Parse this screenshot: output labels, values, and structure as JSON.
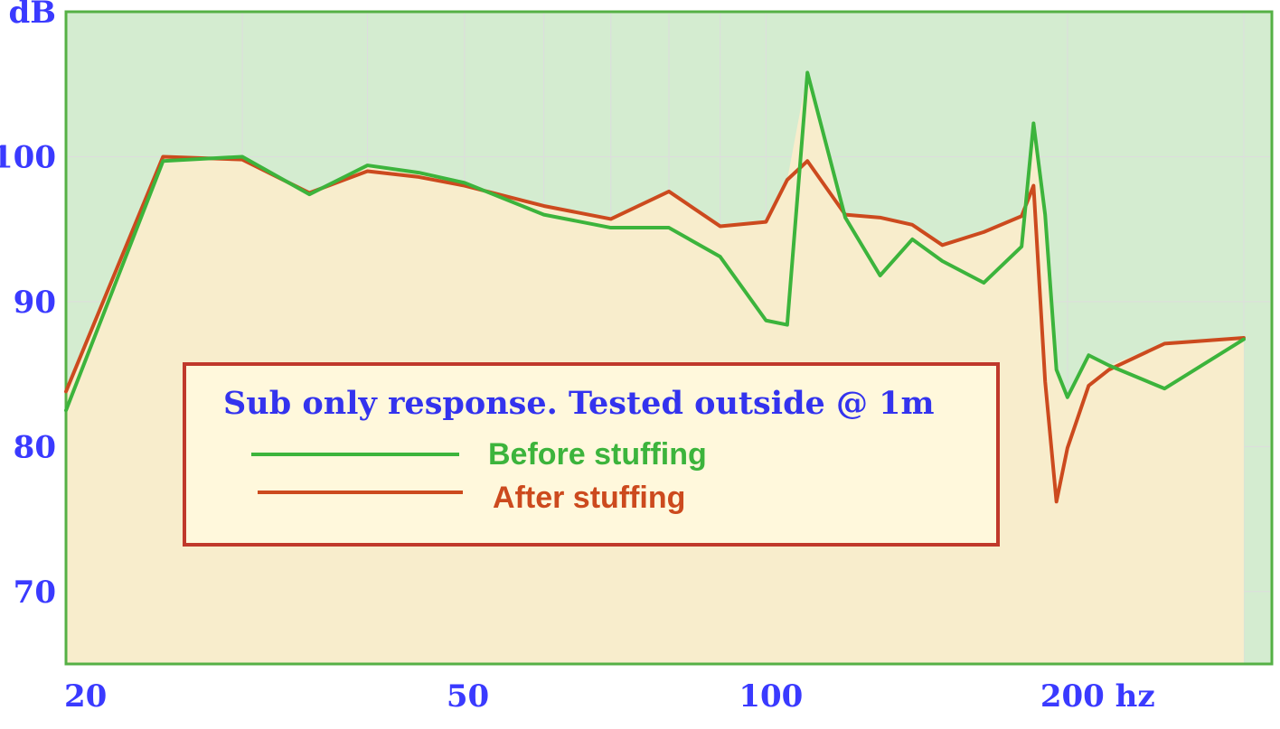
{
  "chart_data": {
    "type": "line",
    "title": "",
    "xlabel": "hz",
    "ylabel": "dB",
    "x_scale": "log",
    "xlim": [
      20,
      320
    ],
    "ylim": [
      65,
      110
    ],
    "x_ticks": [
      {
        "value": 20,
        "label": "20"
      },
      {
        "value": 50,
        "label": "50"
      },
      {
        "value": 100,
        "label": "100"
      },
      {
        "value": 200,
        "label": "200 hz"
      }
    ],
    "y_ticks": [
      {
        "value": 110,
        "label": "dB"
      },
      {
        "value": 100,
        "label": "100"
      },
      {
        "value": 90,
        "label": "90"
      },
      {
        "value": 80,
        "label": "80"
      },
      {
        "value": 70,
        "label": "70"
      }
    ],
    "x_gridlines": [
      20,
      30,
      40,
      50,
      60,
      70,
      80,
      90,
      100,
      200,
      300
    ],
    "y_gridlines": [
      70,
      80,
      90,
      100
    ],
    "grid": true,
    "annotation": {
      "text": "Sub only response. Tested outside @ 1m",
      "placement": "center-left"
    },
    "legend_placement": "inside-center-left",
    "colors": {
      "plot_bg": "#d4ecd0",
      "area_fill": "#f8edcc",
      "grid": "#dddddd",
      "axis_text": "#3a3aff",
      "frame": "#55b045",
      "legend_bg": "#fff8dc",
      "legend_border": "#c0392b"
    },
    "series": [
      {
        "name": "Before stuffing",
        "color": "#3cb43c",
        "x": [
          20,
          25,
          30,
          35,
          40,
          45,
          50,
          60,
          70,
          80,
          90,
          100,
          105,
          110,
          120,
          130,
          140,
          150,
          165,
          180,
          185,
          190,
          195,
          200,
          210,
          220,
          250,
          300
        ],
        "y": [
          82.5,
          99.7,
          100.0,
          97.4,
          99.4,
          98.9,
          98.2,
          96.0,
          95.1,
          95.1,
          93.1,
          88.7,
          88.4,
          105.8,
          95.8,
          91.8,
          94.3,
          92.8,
          91.3,
          93.8,
          102.3,
          96.0,
          85.3,
          83.4,
          86.3,
          85.6,
          84.0,
          87.4
        ]
      },
      {
        "name": "After stuffing",
        "color": "#cc4a1e",
        "x": [
          20,
          25,
          30,
          35,
          40,
          45,
          50,
          60,
          70,
          80,
          90,
          100,
          105,
          110,
          120,
          130,
          140,
          150,
          165,
          180,
          185,
          190,
          195,
          200,
          210,
          220,
          250,
          300
        ],
        "y": [
          83.8,
          100.0,
          99.8,
          97.5,
          99.0,
          98.6,
          98.0,
          96.6,
          95.7,
          97.6,
          95.2,
          95.5,
          98.4,
          99.7,
          96.0,
          95.8,
          95.3,
          93.9,
          94.8,
          95.9,
          98.0,
          84.5,
          76.2,
          79.9,
          84.2,
          85.3,
          87.1,
          87.5
        ]
      }
    ]
  }
}
